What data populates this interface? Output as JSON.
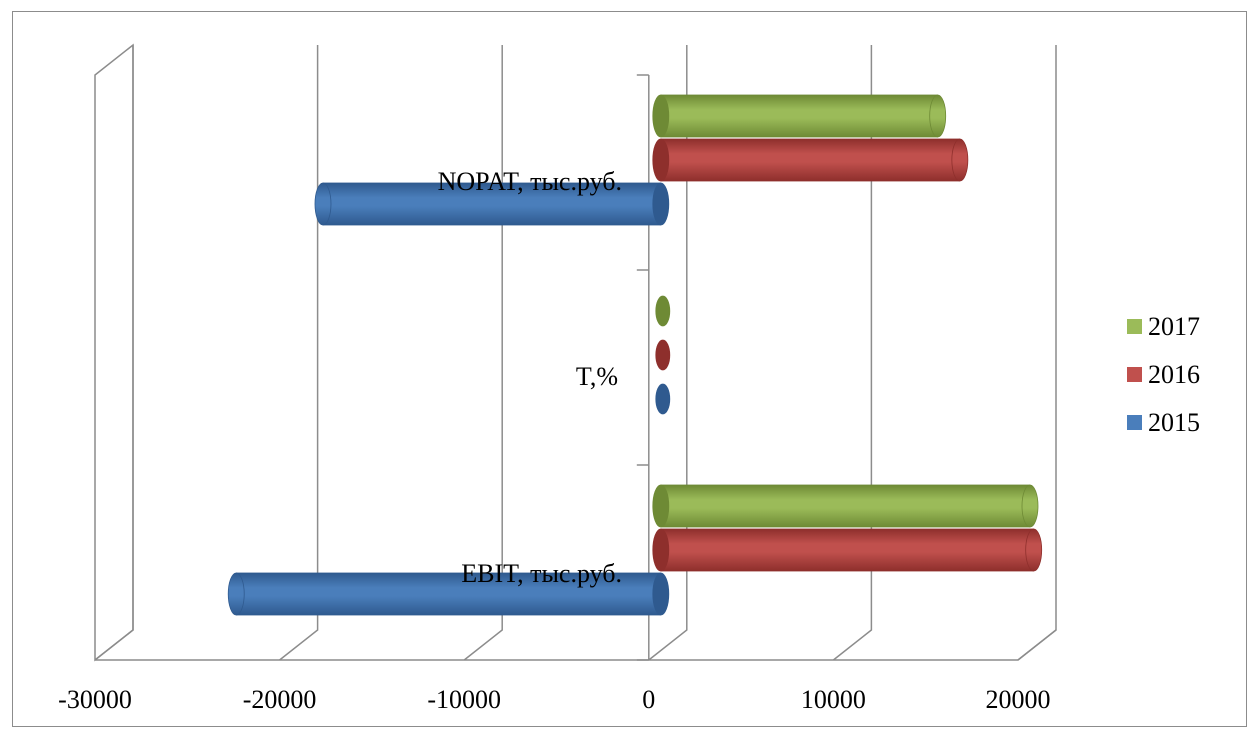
{
  "chart_data": {
    "type": "bar",
    "orientation": "horizontal",
    "style": "3d-cylinder",
    "categories": [
      "EBIT, тыс.руб.",
      "T,%",
      "NOPAT, тыс.руб."
    ],
    "series": [
      {
        "name": "2015",
        "values": [
          -23000,
          20,
          -18300
        ],
        "color": "#4a7ebb",
        "dark": "#2f5a8f"
      },
      {
        "name": "2016",
        "values": [
          20200,
          20,
          16200
        ],
        "color": "#c0504d",
        "dark": "#8e2f2c"
      },
      {
        "name": "2017",
        "values": [
          20000,
          20,
          15000
        ],
        "color": "#9bbb59",
        "dark": "#6e8a35"
      }
    ],
    "xlim": [
      -30000,
      20000
    ],
    "xticks": [
      -30000,
      -20000,
      -10000,
      0,
      10000,
      20000
    ],
    "xtick_labels": [
      "-30000",
      "-20000",
      "-10000",
      "0",
      "10000",
      "20000"
    ],
    "grid": true,
    "legend_position": "right",
    "legend_order": [
      "2017",
      "2016",
      "2015"
    ]
  }
}
